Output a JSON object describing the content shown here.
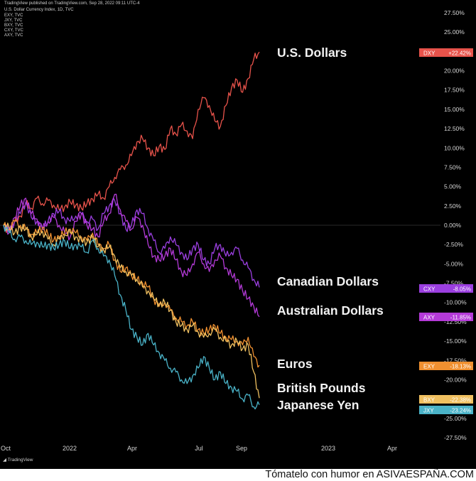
{
  "header": {
    "title": "TradingView published on TradingView.com, Sep 28, 2022 09:11 UTC-4",
    "subtitle": "U.S. Dollar Currency Index, 1D, TVC",
    "symbols": [
      "EXY, TVC",
      "JXY, TVC",
      "BXY, TVC",
      "CXY, TVC",
      "AXY, TVC"
    ]
  },
  "footer": {
    "prefix": "Tómatelo con humor en ",
    "site": "ASIVAESPAÑA.COM"
  },
  "logo_text": "TradingView",
  "chart_data": {
    "type": "line",
    "x_ticks": [
      "Oct",
      "2022",
      "Apr",
      "Jul",
      "Sep",
      "2023",
      "Apr"
    ],
    "y_ticks": [
      "27.50%",
      "25.00%",
      "22.50%",
      "20.00%",
      "17.50%",
      "15.00%",
      "12.50%",
      "10.00%",
      "7.50%",
      "5.00%",
      "2.50%",
      "0.00%",
      "-2.50%",
      "-5.00%",
      "-7.50%",
      "-10.00%",
      "-12.50%",
      "-15.00%",
      "-17.50%",
      "-20.00%",
      "-22.50%",
      "-25.00%",
      "-27.50%"
    ],
    "ylim": [
      -27.5,
      27.5
    ],
    "x_range_months": [
      "Oct 2021",
      "Sep 2022"
    ],
    "series": [
      {
        "name": "U.S. Dollars",
        "ticker": "DXY",
        "last": "+22.42%",
        "color": "#e8534b",
        "values": [
          0,
          -0.8,
          0.5,
          1.2,
          2.8,
          2.2,
          3.5,
          2.8,
          3.2,
          2.6,
          2.0,
          2.4,
          3.0,
          2.6,
          2.2,
          2.8,
          3.4,
          4.0,
          3.5,
          5.0,
          6.2,
          7.2,
          7.8,
          9.0,
          10.8,
          11.2,
          10.0,
          9.0,
          10.2,
          9.8,
          12.5,
          11.8,
          13.0,
          12.2,
          11.2,
          15.0,
          16.5,
          15.5,
          13.5,
          12.8,
          15.5,
          17.8,
          18.8,
          17.2,
          19.0,
          21.5,
          22.42
        ]
      },
      {
        "name": "Canadian Dollars",
        "ticker": "CXY",
        "last": "-8.05%",
        "color": "#9b3fe0",
        "values": [
          0,
          -0.8,
          0.5,
          1.5,
          3.0,
          1.0,
          0.5,
          -0.5,
          0.5,
          1.5,
          1.8,
          0.8,
          0.5,
          1.2,
          1.5,
          0.5,
          0.8,
          -0.5,
          1.5,
          2.5,
          3.2,
          1.5,
          -0.5,
          0.0,
          2.0,
          1.5,
          -0.5,
          -2.0,
          -3.5,
          -3.0,
          -1.5,
          -2.5,
          -3.5,
          -4.5,
          -3.0,
          -2.5,
          -4.5,
          -5.0,
          -3.0,
          -2.5,
          -4.0,
          -3.5,
          -3.0,
          -4.5,
          -5.5,
          -7.0,
          -8.05
        ]
      },
      {
        "name": "Australian Dollars",
        "ticker": "AXY",
        "last": "-11.85%",
        "color": "#b43ad8",
        "values": [
          0,
          -1.0,
          1.0,
          2.5,
          3.5,
          1.5,
          0.8,
          -0.5,
          0.5,
          1.0,
          0.0,
          -1.0,
          -1.5,
          0.5,
          1.5,
          0.0,
          -0.5,
          -1.5,
          0.5,
          1.5,
          4.0,
          2.0,
          0.5,
          -0.5,
          1.0,
          0.0,
          -2.5,
          -4.0,
          -4.5,
          -4.0,
          -3.0,
          -4.5,
          -6.0,
          -6.5,
          -5.0,
          -3.5,
          -5.0,
          -6.0,
          -4.5,
          -4.0,
          -5.5,
          -6.5,
          -7.0,
          -8.5,
          -9.5,
          -10.5,
          -11.85
        ]
      },
      {
        "name": "Euros",
        "ticker": "EXY",
        "last": "-18.13%",
        "color": "#f09030",
        "values": [
          0,
          -0.5,
          0.5,
          0.0,
          -0.5,
          -1.2,
          -1.0,
          -0.3,
          -1.2,
          -2.0,
          -1.5,
          -1.0,
          -0.5,
          -1.0,
          -1.5,
          -2.0,
          -1.0,
          -2.5,
          -3.0,
          -2.5,
          -4.5,
          -6.0,
          -5.5,
          -6.5,
          -7.0,
          -7.5,
          -8.0,
          -9.5,
          -10.5,
          -10.0,
          -11.0,
          -12.0,
          -12.5,
          -13.0,
          -12.5,
          -13.5,
          -14.0,
          -13.5,
          -13.0,
          -14.0,
          -14.5,
          -14.8,
          -15.0,
          -15.5,
          -14.5,
          -17.0,
          -18.13
        ]
      },
      {
        "name": "British Pounds",
        "ticker": "BXY",
        "last": "-22.38%",
        "color": "#f0c060",
        "values": [
          0,
          -0.3,
          -1.0,
          -0.3,
          -0.5,
          -1.5,
          -1.2,
          -0.8,
          -1.8,
          -2.5,
          -1.8,
          -1.2,
          -1.0,
          -1.5,
          -2.0,
          -2.2,
          -1.5,
          -2.8,
          -3.2,
          -2.8,
          -4.0,
          -5.5,
          -6.0,
          -6.5,
          -7.0,
          -8.0,
          -8.5,
          -9.5,
          -10.2,
          -10.0,
          -11.0,
          -12.5,
          -13.0,
          -13.5,
          -13.0,
          -13.8,
          -14.5,
          -14.0,
          -13.5,
          -14.5,
          -15.0,
          -15.5,
          -15.0,
          -16.0,
          -15.5,
          -19.0,
          -22.38
        ]
      },
      {
        "name": "Japanese Yen",
        "ticker": "JXY",
        "last": "-23.24%",
        "color": "#4ab3c8",
        "values": [
          0,
          -1.0,
          -1.8,
          -1.5,
          -2.0,
          -2.5,
          -2.2,
          -2.8,
          -2.5,
          -3.0,
          -2.5,
          -2.0,
          -3.0,
          -2.5,
          -2.8,
          -3.5,
          -2.0,
          -3.0,
          -4.0,
          -4.5,
          -6.5,
          -9.0,
          -11.0,
          -13.5,
          -14.5,
          -15.5,
          -14.0,
          -15.5,
          -16.5,
          -17.5,
          -18.5,
          -19.0,
          -20.0,
          -20.5,
          -19.5,
          -18.5,
          -17.0,
          -18.5,
          -20.0,
          -19.0,
          -20.5,
          -21.0,
          -21.5,
          -22.5,
          -22.0,
          -23.5,
          -23.24
        ]
      }
    ],
    "grid": false
  }
}
